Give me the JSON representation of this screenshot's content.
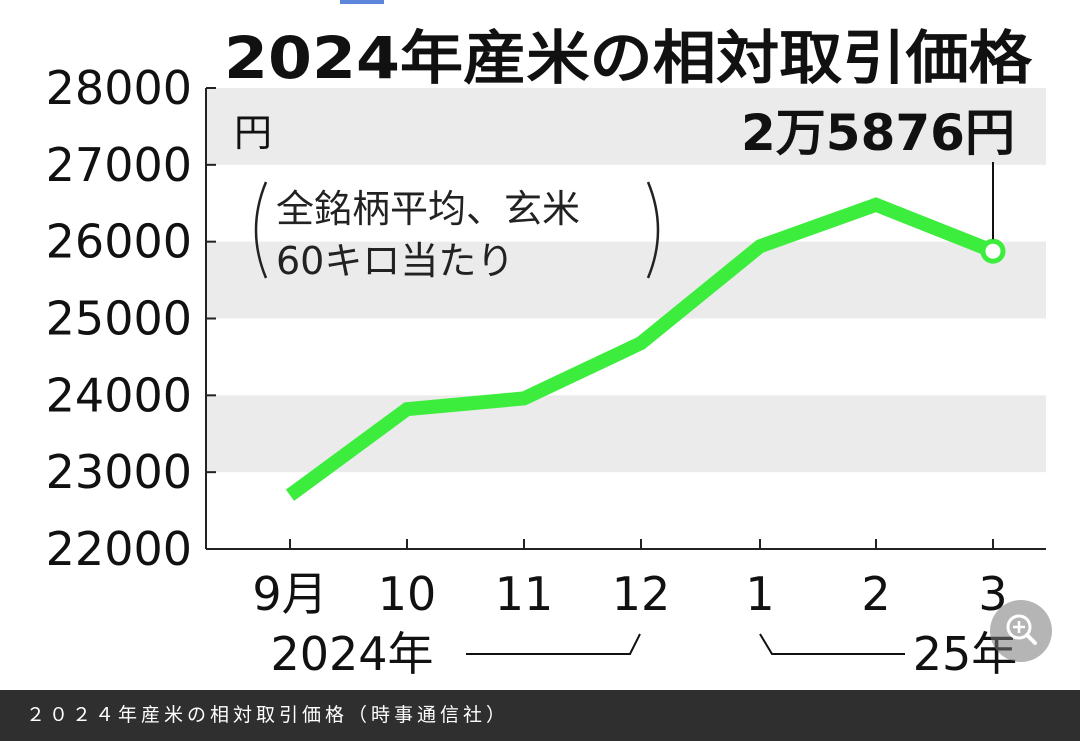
{
  "chart_data": {
    "type": "line",
    "title": "2024年産米の相対取引価格",
    "unit_label": "円",
    "note_lines": [
      "全銘柄平均、玄米",
      "60キロ当たり"
    ],
    "categories": [
      "9月",
      "10",
      "11",
      "12",
      "1",
      "2",
      "3"
    ],
    "year_labels": [
      "2024年",
      "25年"
    ],
    "series": [
      {
        "values": [
          22700,
          23820,
          23960,
          24680,
          25940,
          26480,
          25876
        ],
        "color": "#3ded3d"
      }
    ],
    "yticks": [
      "22000",
      "23000",
      "24000",
      "25000",
      "26000",
      "27000",
      "28000"
    ],
    "ylim": [
      22000,
      28000
    ],
    "bands": [
      [
        23000,
        24000
      ],
      [
        25000,
        26000
      ],
      [
        27000,
        28000
      ]
    ],
    "last_point_label": "2万5876円"
  },
  "caption": "２０２４年産米の相対取引価格（時事通信社）",
  "zoom_icon": "zoom-in-icon"
}
